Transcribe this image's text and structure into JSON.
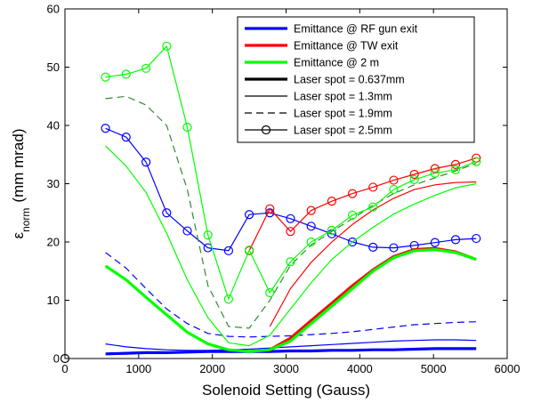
{
  "chart_data": {
    "type": "line",
    "title": "",
    "xlabel": "Solenoid Setting (Gauss)",
    "ylabel": {
      "main": "ε",
      "sub": "norm",
      "rest": "(mm mrad)"
    },
    "xlim": [
      0,
      6000
    ],
    "ylim": [
      0,
      60
    ],
    "x_ticks": [
      0,
      1000,
      2000,
      3000,
      4000,
      5000,
      6000
    ],
    "y_ticks": [
      0,
      10,
      20,
      30,
      40,
      50,
      60
    ],
    "grid": false,
    "legend_placement": "top-right",
    "legend": [
      {
        "label": "Emittance @ RF gun exit",
        "color": "#0000ff",
        "style": "solid",
        "width": "thick",
        "marker": "none"
      },
      {
        "label": "Emittance @ TW exit",
        "color": "#ff0000",
        "style": "solid",
        "width": "thick",
        "marker": "none"
      },
      {
        "label": "Emittance @ 2 m",
        "color": "#00ff00",
        "style": "solid",
        "width": "thick",
        "marker": "none"
      },
      {
        "label": "Laser spot = 0.637mm",
        "color": "#000000",
        "style": "solid",
        "width": "thick",
        "marker": "none"
      },
      {
        "label": "Laser spot = 1.3mm",
        "color": "#000000",
        "style": "solid",
        "width": "thin",
        "marker": "none"
      },
      {
        "label": "Laser spot = 1.9mm",
        "color": "#000000",
        "style": "dashed",
        "width": "thin",
        "marker": "none"
      },
      {
        "label": "Laser spot = 2.5mm",
        "color": "#000000",
        "style": "solid",
        "width": "thin",
        "marker": "circle"
      }
    ],
    "colors": {
      "rf_gun": "#0000ff",
      "tw": "#ff0000",
      "two_m": "#00ff00",
      "two_m_dark": "#2e8b2e"
    },
    "origin_marker": {
      "x": 0,
      "y": 0
    },
    "series": [
      {
        "id": "blue-0637",
        "color": "#0000ff",
        "style": "solid",
        "width": "thick",
        "marker": "none",
        "x": [
          550,
          830,
          1100,
          1380,
          1660,
          1940,
          2220,
          2500,
          2780,
          3060,
          3340,
          3620,
          3900,
          4180,
          4460,
          4740,
          5020,
          5300,
          5580
        ],
        "y": [
          0.8,
          0.9,
          1.0,
          1.0,
          1.1,
          1.2,
          1.2,
          1.2,
          1.2,
          1.3,
          1.3,
          1.4,
          1.4,
          1.5,
          1.5,
          1.6,
          1.7,
          1.7,
          1.7
        ]
      },
      {
        "id": "blue-13",
        "color": "#0000ff",
        "style": "solid",
        "width": "thin",
        "marker": "none",
        "x": [
          550,
          830,
          1100,
          1380,
          1660,
          1940,
          2220,
          2500,
          2780,
          3060,
          3340,
          3620,
          3900,
          4180,
          4460,
          4740,
          5020,
          5300,
          5580
        ],
        "y": [
          2.5,
          2.0,
          1.7,
          1.5,
          1.4,
          1.4,
          1.5,
          1.6,
          1.8,
          2.0,
          2.2,
          2.4,
          2.6,
          2.8,
          3.0,
          3.1,
          3.2,
          3.2,
          3.1
        ]
      },
      {
        "id": "blue-19",
        "color": "#0000ff",
        "style": "dashed",
        "width": "thin",
        "marker": "none",
        "x": [
          550,
          830,
          1100,
          1380,
          1660,
          1940,
          2220,
          2500,
          2780,
          3060,
          3340,
          3620,
          3900,
          4180,
          4460,
          4740,
          5020,
          5300,
          5580
        ],
        "y": [
          18.2,
          15.5,
          12.0,
          8.5,
          6.0,
          4.3,
          3.8,
          3.7,
          3.8,
          3.9,
          4.1,
          4.3,
          4.6,
          5.0,
          5.4,
          5.8,
          6.0,
          6.2,
          6.3
        ]
      },
      {
        "id": "blue-25",
        "color": "#0000ff",
        "style": "solid",
        "width": "thin",
        "marker": "circle",
        "x": [
          550,
          830,
          1100,
          1380,
          1660,
          1940,
          2220,
          2500,
          2780,
          3060,
          3340,
          3620,
          3900,
          4180,
          4460,
          4740,
          5020,
          5300,
          5580
        ],
        "y": [
          39.5,
          38.0,
          33.7,
          25.0,
          21.9,
          19.0,
          18.5,
          24.7,
          25.0,
          24.0,
          22.7,
          21.4,
          20.0,
          19.1,
          19.0,
          19.4,
          19.9,
          20.4,
          20.6
        ]
      },
      {
        "id": "red-0637",
        "color": "#ff0000",
        "style": "solid",
        "width": "thick",
        "marker": "none",
        "x": [
          2780,
          3060,
          3340,
          3620,
          3900,
          4180,
          4460,
          4740,
          5020,
          5300,
          5580
        ],
        "y": [
          1.5,
          3.5,
          6.5,
          9.5,
          12.5,
          15.2,
          17.5,
          18.7,
          18.9,
          18.3,
          17.0
        ]
      },
      {
        "id": "red-13",
        "color": "#ff0000",
        "style": "solid",
        "width": "thin",
        "marker": "none",
        "x": [
          2780,
          3060,
          3340,
          3620,
          3900,
          4180,
          4460,
          4740,
          5020,
          5300,
          5580
        ],
        "y": [
          5.5,
          12.0,
          16.5,
          20.0,
          23.0,
          25.5,
          27.5,
          29.0,
          29.8,
          30.2,
          30.3
        ]
      },
      {
        "id": "red-25",
        "color": "#ff0000",
        "style": "solid",
        "width": "thin",
        "marker": "circle",
        "x": [
          2500,
          2780,
          3060,
          3340,
          3620,
          3900,
          4180,
          4460,
          4740,
          5020,
          5300,
          5580
        ],
        "y": [
          18.5,
          25.7,
          21.8,
          25.4,
          27.0,
          28.3,
          29.4,
          30.6,
          31.6,
          32.6,
          33.3,
          34.4
        ]
      },
      {
        "id": "green-0637",
        "color": "#00ff00",
        "style": "solid",
        "width": "thick",
        "marker": "none",
        "x": [
          550,
          830,
          1100,
          1380,
          1660,
          1940,
          2220,
          2500,
          2780,
          3060,
          3340,
          3620,
          3900,
          4180,
          4460,
          4740,
          5020,
          5300,
          5580
        ],
        "y": [
          15.9,
          13.5,
          10.5,
          7.5,
          4.5,
          2.5,
          1.5,
          1.2,
          1.5,
          3.0,
          6.0,
          9.0,
          12.0,
          15.0,
          17.3,
          18.5,
          18.7,
          18.2,
          17.0
        ]
      },
      {
        "id": "green-13",
        "color": "#00ff00",
        "style": "solid",
        "width": "thin",
        "marker": "none",
        "x": [
          550,
          830,
          1100,
          1380,
          1660,
          1940,
          2220,
          2500,
          2780,
          3060,
          3340,
          3620,
          3900,
          4180,
          4460,
          4740,
          5020,
          5300,
          5580
        ],
        "y": [
          36.5,
          33.0,
          28.5,
          21.5,
          13.5,
          7.0,
          2.7,
          2.2,
          4.0,
          8.5,
          13.0,
          17.0,
          20.0,
          22.5,
          24.8,
          26.5,
          28.0,
          29.3,
          30.0
        ]
      },
      {
        "id": "green-19",
        "color": "#2e8b2e",
        "style": "dashed",
        "width": "thin",
        "marker": "none",
        "x": [
          550,
          830,
          1100,
          1380,
          1660,
          1940,
          2220,
          2500,
          2780,
          3060,
          3340,
          3620,
          3900,
          4180,
          4460,
          4740,
          5020,
          5300,
          5580
        ],
        "y": [
          44.6,
          45.0,
          43.5,
          40.0,
          29.0,
          12.5,
          5.5,
          5.2,
          10.0,
          16.0,
          19.5,
          21.8,
          24.0,
          26.3,
          28.3,
          29.8,
          31.0,
          32.2,
          33.5
        ]
      },
      {
        "id": "green-25",
        "color": "#00ff00",
        "style": "solid",
        "width": "thin",
        "marker": "circle",
        "x": [
          550,
          830,
          1100,
          1380,
          1660,
          1940,
          2220,
          2500,
          2780,
          3060,
          3340,
          3620,
          3900,
          4180,
          4460,
          4740,
          5020,
          5300,
          5580
        ],
        "y": [
          48.3,
          48.8,
          49.8,
          53.6,
          39.7,
          21.2,
          10.2,
          18.6,
          11.3,
          16.6,
          20.0,
          22.0,
          24.6,
          26.0,
          29.0,
          30.7,
          31.8,
          32.4,
          33.8
        ]
      }
    ]
  }
}
